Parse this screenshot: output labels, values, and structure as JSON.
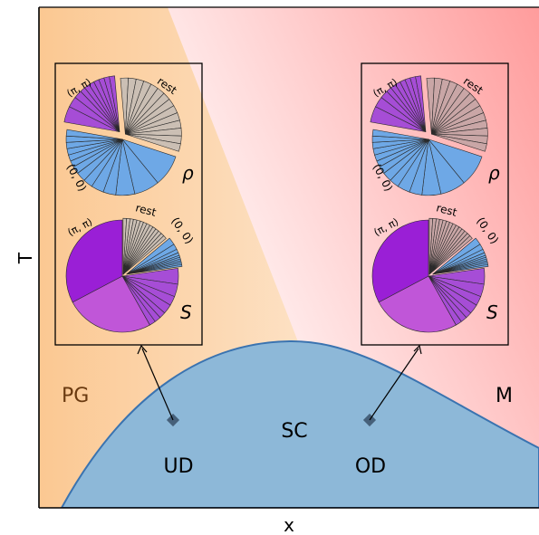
{
  "axes": {
    "xlabel": "x",
    "ylabel": "T"
  },
  "regions": {
    "pg": "PG",
    "m": "M",
    "sc": "SC",
    "ud": "UD",
    "od": "OD"
  },
  "insets": {
    "left": {
      "rho": {
        "label_pipi": "(π, π)",
        "label_rest": "rest",
        "label_00": "(0, 0)",
        "symbol": "ρ"
      },
      "s": {
        "label_pipi": "(π, π)",
        "label_rest": "rest",
        "label_00": "(0, 0)",
        "symbol": "S"
      }
    },
    "right": {
      "rho": {
        "label_pipi": "(π, π)",
        "label_rest": "rest",
        "label_00": "(0, 0)",
        "symbol": "ρ"
      },
      "s": {
        "label_pipi": "(π, π)",
        "label_rest": "rest",
        "label_00": "(0, 0)",
        "symbol": "S"
      }
    }
  },
  "colors": {
    "pipi": "#a64dd6",
    "zero": "#6ea8e6",
    "rest_left": "#cbbfb4",
    "rest_right": "#c9a6a6",
    "dome": "#8db8d8",
    "dome_edge": "#3a73b0",
    "pg_bg": "#fbc892",
    "m_bg": "#ffa0a0"
  },
  "chart_data": {
    "type": "pie",
    "pies": [
      {
        "inset": "UD",
        "quantity": "ρ",
        "groups": [
          "(π, π)",
          "rest",
          "(0, 0)"
        ]
      },
      {
        "inset": "UD",
        "quantity": "S",
        "groups": [
          "(π, π)",
          "rest",
          "(0, 0)"
        ]
      },
      {
        "inset": "OD",
        "quantity": "ρ",
        "groups": [
          "(π, π)",
          "rest",
          "(0, 0)"
        ]
      },
      {
        "inset": "OD",
        "quantity": "S",
        "groups": [
          "(π, π)",
          "rest",
          "(0, 0)"
        ]
      }
    ]
  }
}
